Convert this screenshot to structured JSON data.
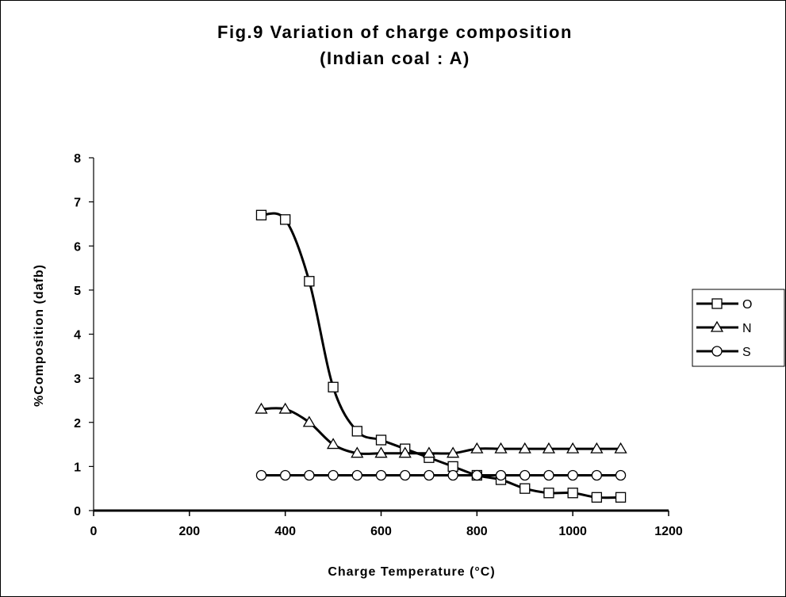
{
  "chart_data": {
    "type": "line",
    "title": "Fig.9 Variation of charge composition",
    "subtitle": "(Indian coal : A)",
    "xlabel": "Charge Temperature (°C)",
    "ylabel": "%Composition (dafb)",
    "xlim": [
      0,
      1200
    ],
    "ylim": [
      0,
      8
    ],
    "xticks": [
      0,
      200,
      400,
      600,
      800,
      1000,
      1200
    ],
    "yticks": [
      0,
      1,
      2,
      3,
      4,
      5,
      6,
      7,
      8
    ],
    "grid": false,
    "legend_position": "right",
    "x": [
      350,
      400,
      450,
      500,
      550,
      600,
      650,
      700,
      750,
      800,
      850,
      900,
      950,
      1000,
      1050,
      1100
    ],
    "series": [
      {
        "name": "O",
        "marker": "square",
        "values": [
          6.7,
          6.6,
          5.2,
          2.8,
          1.8,
          1.6,
          1.4,
          1.2,
          1.0,
          0.8,
          0.7,
          0.5,
          0.4,
          0.4,
          0.3,
          0.3
        ]
      },
      {
        "name": "N",
        "marker": "triangle",
        "values": [
          2.3,
          2.3,
          2.0,
          1.5,
          1.3,
          1.3,
          1.3,
          1.3,
          1.3,
          1.4,
          1.4,
          1.4,
          1.4,
          1.4,
          1.4,
          1.4
        ]
      },
      {
        "name": "S",
        "marker": "circle",
        "values": [
          0.8,
          0.8,
          0.8,
          0.8,
          0.8,
          0.8,
          0.8,
          0.8,
          0.8,
          0.8,
          0.8,
          0.8,
          0.8,
          0.8,
          0.8,
          0.8
        ]
      }
    ]
  }
}
